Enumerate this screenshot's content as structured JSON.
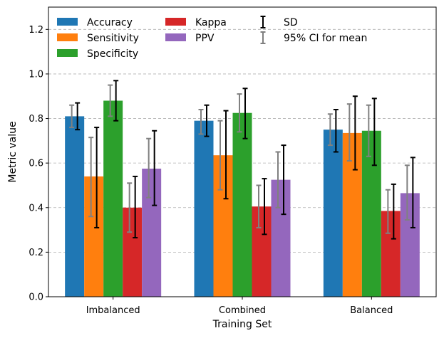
{
  "chart_data": {
    "type": "bar",
    "xlabel": "Training Set",
    "ylabel": "Metric value",
    "ylim": [
      0,
      1.3
    ],
    "yticks": [
      0.0,
      0.2,
      0.4,
      0.6,
      0.8,
      1.0,
      1.2
    ],
    "ytick_labels": [
      "0.0",
      "0.2",
      "0.4",
      "0.6",
      "0.8",
      "1.0",
      "1.2"
    ],
    "grid": true,
    "legend_position": "top-left",
    "categories": [
      "Imbalanced",
      "Combined",
      "Balanced"
    ],
    "series": [
      {
        "name": "Accuracy",
        "color": "#1f77b4",
        "values": [
          0.81,
          0.79,
          0.75
        ],
        "sd": [
          [
            0.75,
            0.87
          ],
          [
            0.72,
            0.86
          ],
          [
            0.65,
            0.84
          ]
        ],
        "ci": [
          [
            0.76,
            0.86
          ],
          [
            0.73,
            0.84
          ],
          [
            0.68,
            0.82
          ]
        ]
      },
      {
        "name": "Sensitivity",
        "color": "#ff7f0e",
        "values": [
          0.54,
          0.635,
          0.735
        ],
        "sd": [
          [
            0.31,
            0.76
          ],
          [
            0.44,
            0.835
          ],
          [
            0.57,
            0.9
          ]
        ],
        "ci": [
          [
            0.36,
            0.715
          ],
          [
            0.48,
            0.79
          ],
          [
            0.61,
            0.865
          ]
        ]
      },
      {
        "name": "Specificity",
        "color": "#2ca02c",
        "values": [
          0.88,
          0.825,
          0.745
        ],
        "sd": [
          [
            0.79,
            0.97
          ],
          [
            0.71,
            0.935
          ],
          [
            0.59,
            0.89
          ]
        ],
        "ci": [
          [
            0.81,
            0.95
          ],
          [
            0.74,
            0.91
          ],
          [
            0.63,
            0.86
          ]
        ]
      },
      {
        "name": "Kappa",
        "color": "#d62728",
        "values": [
          0.4,
          0.405,
          0.385
        ],
        "sd": [
          [
            0.265,
            0.54
          ],
          [
            0.28,
            0.53
          ],
          [
            0.26,
            0.505
          ]
        ],
        "ci": [
          [
            0.29,
            0.51
          ],
          [
            0.31,
            0.5
          ],
          [
            0.285,
            0.48
          ]
        ]
      },
      {
        "name": "PPV",
        "color": "#9467bd",
        "values": [
          0.575,
          0.525,
          0.465
        ],
        "sd": [
          [
            0.41,
            0.745
          ],
          [
            0.37,
            0.68
          ],
          [
            0.31,
            0.625
          ]
        ],
        "ci": [
          [
            0.445,
            0.71
          ],
          [
            0.4,
            0.65
          ],
          [
            0.345,
            0.59
          ]
        ]
      }
    ],
    "error_legend": [
      {
        "label": "SD",
        "color": "#000000"
      },
      {
        "label": "95% CI for mean",
        "color": "#808080"
      }
    ]
  }
}
